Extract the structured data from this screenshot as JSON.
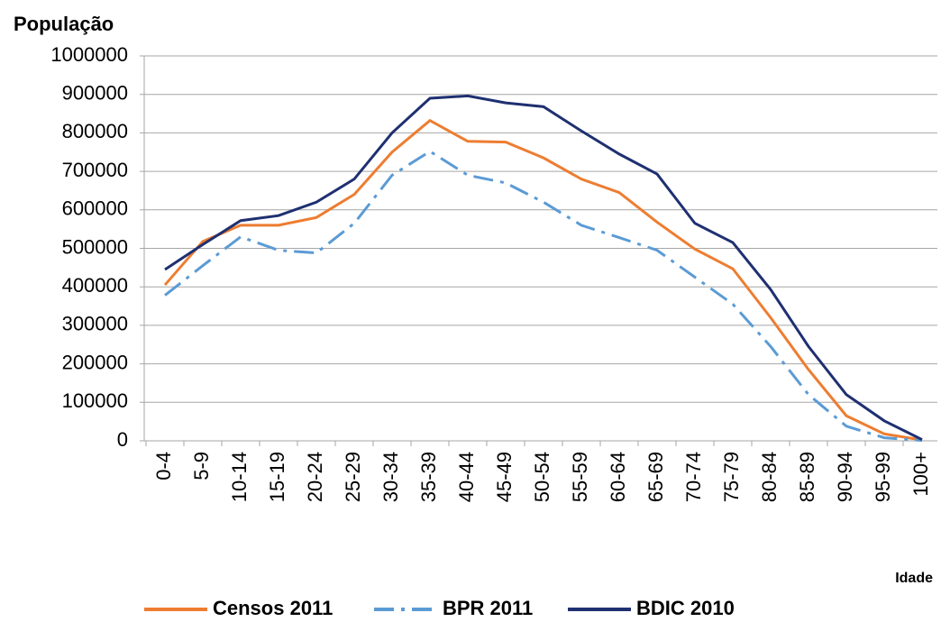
{
  "chart_data": {
    "type": "line",
    "y_label": "População",
    "x_label": "Idade",
    "categories": [
      "0-4",
      "5-9",
      "10-14",
      "15-19",
      "20-24",
      "25-29",
      "30-34",
      "35-39",
      "40-44",
      "45-49",
      "50-54",
      "55-59",
      "60-64",
      "65-69",
      "70-74",
      "75-79",
      "80-84",
      "85-89",
      "90-94",
      "95-99",
      "100+"
    ],
    "series": [
      {
        "name": "Censos 2011",
        "color": "#ed7d31",
        "style": "solid",
        "values": [
          405000,
          518000,
          560000,
          560000,
          580000,
          640000,
          750000,
          832000,
          778000,
          776000,
          735000,
          680000,
          645000,
          568000,
          498000,
          447000,
          320000,
          185000,
          65000,
          18000,
          2000
        ]
      },
      {
        "name": "BPR 2011",
        "color": "#5b9bd5",
        "style": "dash-dot",
        "values": [
          378000,
          455000,
          530000,
          495000,
          488000,
          565000,
          690000,
          752000,
          690000,
          670000,
          620000,
          560000,
          528000,
          495000,
          425000,
          355000,
          245000,
          120000,
          38000,
          8000,
          1000
        ]
      },
      {
        "name": "BDIC 2010",
        "color": "#1f3071",
        "style": "solid",
        "values": [
          445000,
          510000,
          572000,
          585000,
          620000,
          680000,
          800000,
          890000,
          896000,
          878000,
          868000,
          805000,
          745000,
          693000,
          565000,
          515000,
          393000,
          245000,
          120000,
          52000,
          3000
        ]
      }
    ],
    "ylim": [
      0,
      1000000
    ],
    "yticks": [
      0,
      100000,
      200000,
      300000,
      400000,
      500000,
      600000,
      700000,
      800000,
      900000,
      1000000
    ],
    "grid": true,
    "legend": "bottom"
  }
}
